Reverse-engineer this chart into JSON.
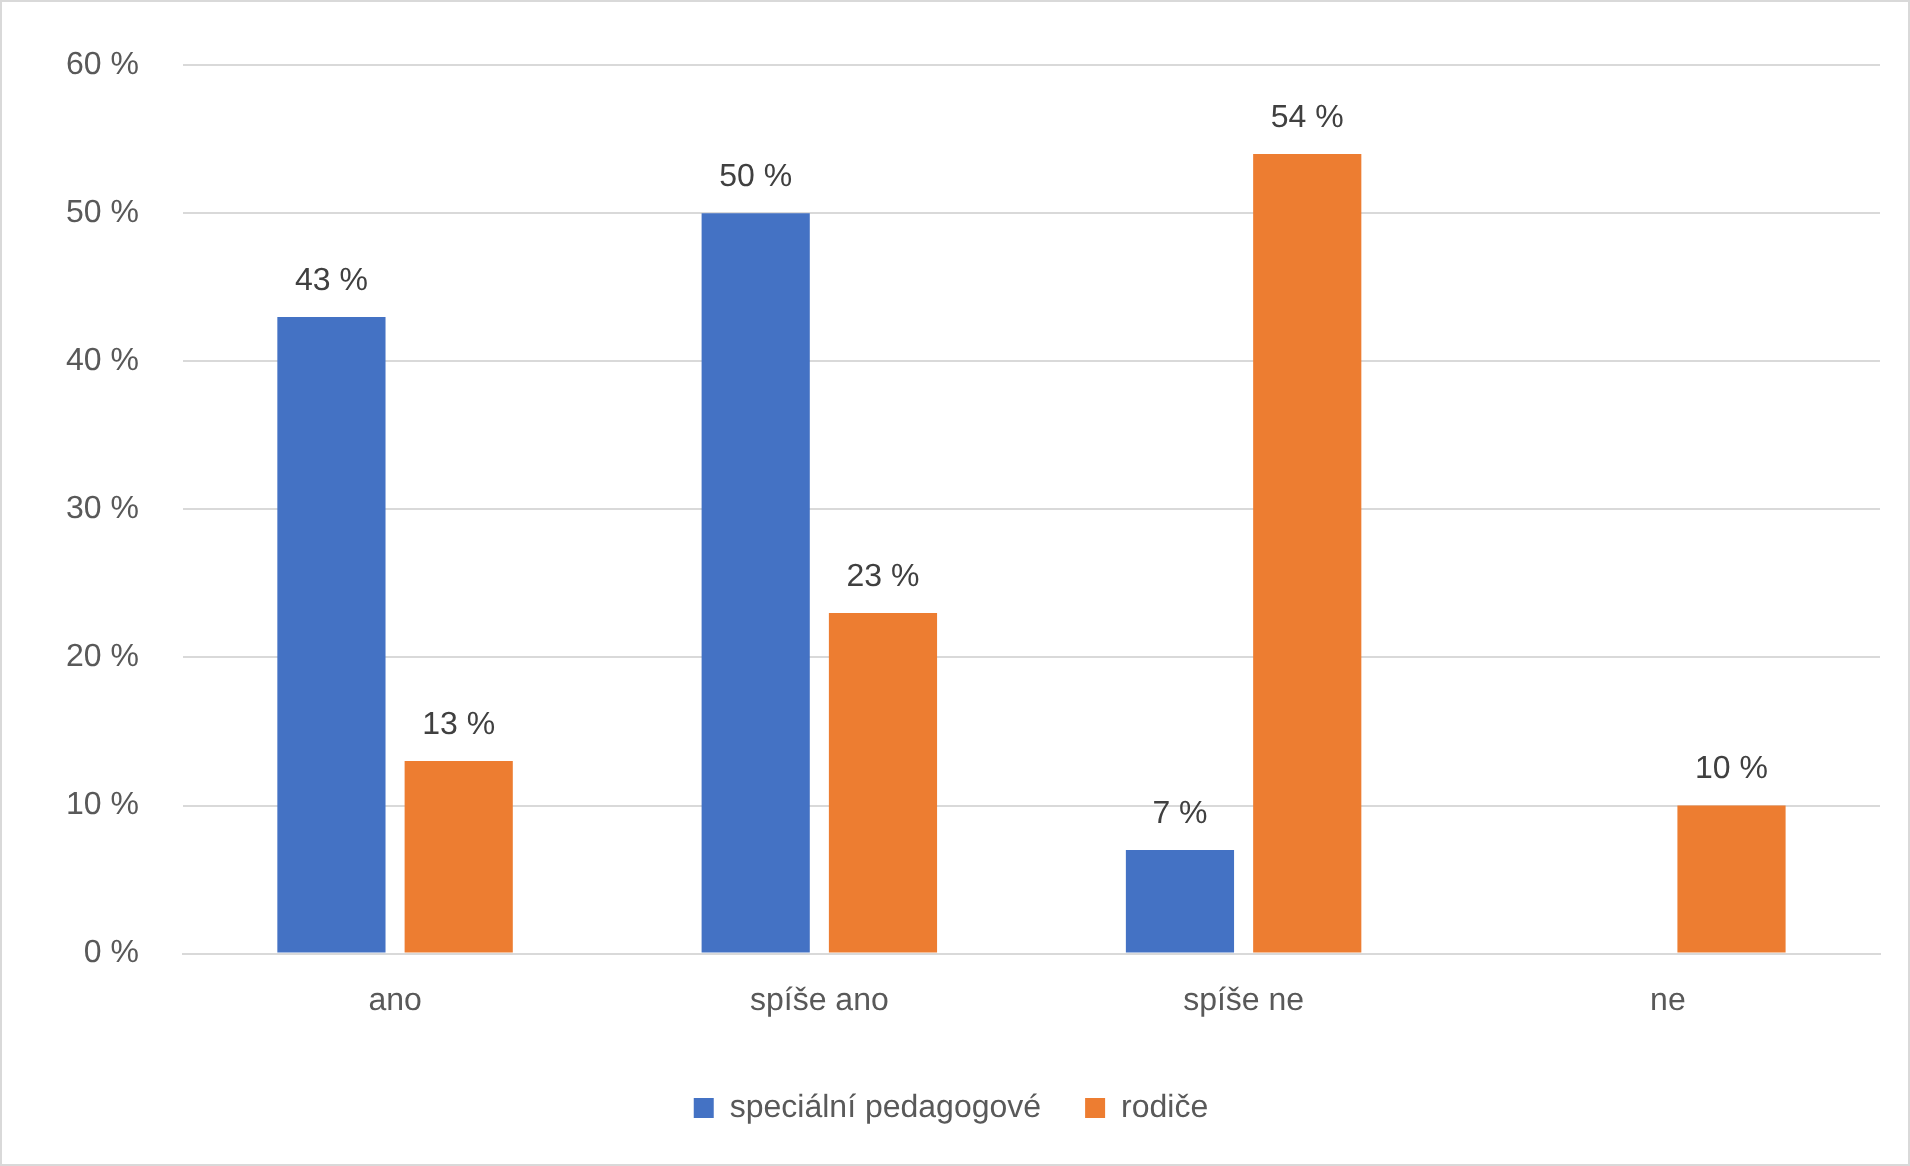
{
  "chart_data": {
    "type": "bar",
    "categories": [
      "ano",
      "spíše ano",
      "spíše ne",
      "ne"
    ],
    "series": [
      {
        "name": "speciální pedagogové",
        "color": "#4472c4",
        "values": [
          43,
          50,
          7,
          null
        ],
        "value_labels": [
          "43 %",
          "50 %",
          "7 %",
          null
        ]
      },
      {
        "name": "rodiče",
        "color": "#ed7d31",
        "values": [
          13,
          23,
          54,
          10
        ],
        "value_labels": [
          "13 %",
          "23 %",
          "54 %",
          "10 %"
        ]
      }
    ],
    "ylim": [
      0,
      60
    ],
    "yticks": [
      {
        "value": 0,
        "label": "0 %"
      },
      {
        "value": 10,
        "label": "10 %"
      },
      {
        "value": 20,
        "label": "20 %"
      },
      {
        "value": 30,
        "label": "30 %"
      },
      {
        "value": 40,
        "label": "40 %"
      },
      {
        "value": 50,
        "label": "50 %"
      },
      {
        "value": 60,
        "label": "60 %"
      }
    ],
    "grid": "y",
    "legend": "bottom"
  }
}
